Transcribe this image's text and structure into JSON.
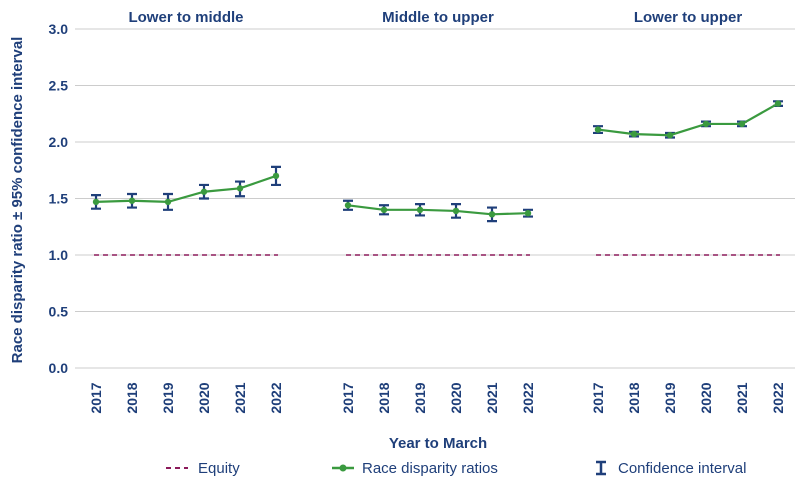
{
  "chart_data": {
    "type": "line",
    "ylabel": "Race disparity ratio ± 95% confidence interval",
    "xlabel": "Year to March",
    "ylim": [
      0,
      3
    ],
    "yticks": [
      "0.0",
      "0.5",
      "1.0",
      "1.5",
      "2.0",
      "2.5",
      "3.0"
    ],
    "grid": true,
    "legend_position": "bottom",
    "legend": {
      "equity": "Equity",
      "ratio": "Race disparity ratios",
      "ci": "Confidence interval"
    },
    "colors": {
      "line": "#3a9a3f",
      "marker": "#3a9a3f",
      "errorbar": "#1f3f7a",
      "equity": "#8b1a5a",
      "text": "#1f3f7a",
      "grid": "#cccccc"
    },
    "panels": [
      {
        "title": "Lower to middle",
        "categories": [
          "2017",
          "2018",
          "2019",
          "2020",
          "2021",
          "2022"
        ],
        "equity": 1.0,
        "values": [
          1.47,
          1.48,
          1.47,
          1.56,
          1.59,
          1.7
        ],
        "ci_low": [
          1.41,
          1.42,
          1.4,
          1.5,
          1.52,
          1.62
        ],
        "ci_high": [
          1.53,
          1.54,
          1.54,
          1.62,
          1.65,
          1.78
        ]
      },
      {
        "title": "Middle to upper",
        "categories": [
          "2017",
          "2018",
          "2019",
          "2020",
          "2021",
          "2022"
        ],
        "equity": 1.0,
        "values": [
          1.44,
          1.4,
          1.4,
          1.39,
          1.36,
          1.37
        ],
        "ci_low": [
          1.4,
          1.36,
          1.35,
          1.33,
          1.3,
          1.34
        ],
        "ci_high": [
          1.48,
          1.44,
          1.45,
          1.45,
          1.42,
          1.4
        ]
      },
      {
        "title": "Lower to upper",
        "categories": [
          "2017",
          "2018",
          "2019",
          "2020",
          "2021",
          "2022"
        ],
        "equity": 1.0,
        "values": [
          2.11,
          2.07,
          2.06,
          2.16,
          2.16,
          2.34
        ],
        "ci_low": [
          2.08,
          2.05,
          2.04,
          2.14,
          2.14,
          2.32
        ],
        "ci_high": [
          2.14,
          2.09,
          2.08,
          2.18,
          2.18,
          2.36
        ]
      }
    ]
  }
}
